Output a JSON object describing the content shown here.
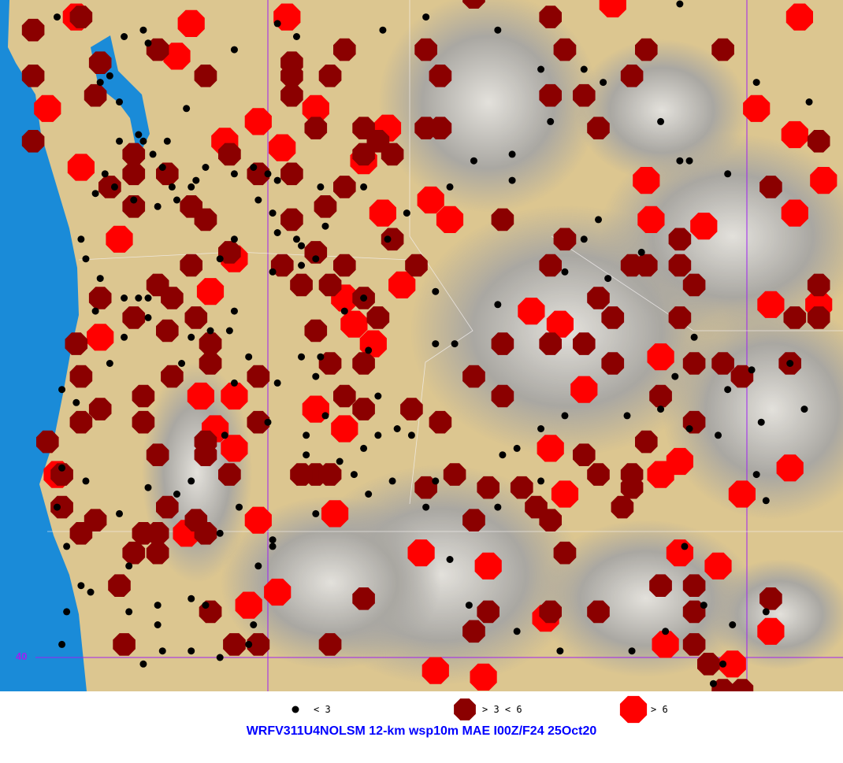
{
  "title": "WRFV311U4NOLSM 12-km wsp10m MAE I00Z/F24 25Oct20",
  "grid": {
    "lat_line": 40,
    "lat_label": "40",
    "lon_lines": [
      -120,
      -110
    ],
    "color": "#a020f0"
  },
  "colors": {
    "ocean": "#1a8bd8",
    "land": "#dcc690",
    "terrain": "#a8a8a8",
    "low": "#000000",
    "mid": "#8b0000",
    "high": "#ff0000",
    "title": "#0000ff"
  },
  "legend": [
    {
      "label": "< 3",
      "color": "#000000",
      "symbol": "dot"
    },
    {
      "label": "> 3 < 6",
      "color": "#8b0000",
      "symbol": "octagon"
    },
    {
      "label": "> 6",
      "color": "#ff0000",
      "symbol": "octagon"
    }
  ],
  "stations": {
    "high": [
      [
        -119.6,
        49.8
      ],
      [
        -112.8,
        50.0
      ],
      [
        -108.9,
        49.8
      ],
      [
        -109.8,
        48.4
      ],
      [
        -109.0,
        48.0
      ],
      [
        -108.4,
        47.3
      ],
      [
        -109.0,
        46.8
      ],
      [
        -110.9,
        46.6
      ],
      [
        -112.0,
        46.7
      ],
      [
        -112.1,
        47.3
      ],
      [
        -116.6,
        47.0
      ],
      [
        -117.6,
        46.8
      ],
      [
        -116.2,
        46.7
      ],
      [
        -117.2,
        45.7
      ],
      [
        -118.4,
        45.5
      ],
      [
        -118.2,
        45.1
      ],
      [
        -117.8,
        44.8
      ],
      [
        -114.5,
        45.3
      ],
      [
        -113.9,
        45.1
      ],
      [
        -113.4,
        44.1
      ],
      [
        -111.8,
        44.6
      ],
      [
        -114.1,
        43.2
      ],
      [
        -113.8,
        42.5
      ],
      [
        -111.8,
        42.8
      ],
      [
        -111.4,
        43.0
      ],
      [
        -110.1,
        42.5
      ],
      [
        -109.1,
        42.9
      ],
      [
        -116.8,
        41.6
      ],
      [
        -115.4,
        41.4
      ],
      [
        -111.4,
        41.6
      ],
      [
        -110.6,
        41.4
      ],
      [
        -114.2,
        40.6
      ],
      [
        -111.7,
        40.2
      ],
      [
        -110.3,
        39.9
      ],
      [
        -116.5,
        39.8
      ],
      [
        -115.5,
        39.7
      ],
      [
        -109.5,
        40.4
      ],
      [
        -123.5,
        44.9
      ],
      [
        -123.9,
        47.5
      ],
      [
        -124.6,
        48.4
      ],
      [
        -124.4,
        42.8
      ],
      [
        -121.4,
        44.0
      ],
      [
        -120.7,
        44.0
      ],
      [
        -121.1,
        43.5
      ],
      [
        -120.7,
        43.2
      ],
      [
        -120.2,
        42.1
      ],
      [
        -119.8,
        41.0
      ],
      [
        -120.4,
        40.8
      ],
      [
        -121.7,
        41.9
      ],
      [
        -119.0,
        43.8
      ],
      [
        -118.4,
        43.5
      ],
      [
        -118.6,
        42.2
      ],
      [
        -109.5,
        45.4
      ],
      [
        -108.5,
        45.4
      ],
      [
        -117.5,
        48.1
      ],
      [
        -118.0,
        47.6
      ],
      [
        -119.0,
        48.4
      ],
      [
        -120.9,
        47.9
      ],
      [
        -120.2,
        48.2
      ],
      [
        -119.7,
        47.8
      ],
      [
        -121.6,
        49.7
      ],
      [
        -124.0,
        49.8
      ],
      [
        -121.9,
        49.2
      ],
      [
        -123.1,
        46.4
      ],
      [
        -120.7,
        46.1
      ],
      [
        -121.2,
        45.6
      ]
    ],
    "mid": [
      [
        -124.9,
        49.6
      ],
      [
        -123.9,
        49.8
      ],
      [
        -121.3,
        48.9
      ],
      [
        -119.5,
        49.1
      ],
      [
        -118.4,
        49.3
      ],
      [
        -119.5,
        48.9
      ],
      [
        -118.7,
        48.9
      ],
      [
        -118.0,
        48.1
      ],
      [
        -116.7,
        48.1
      ],
      [
        -116.4,
        48.1
      ],
      [
        -116.4,
        48.9
      ],
      [
        -116.7,
        49.3
      ],
      [
        -115.7,
        50.1
      ],
      [
        -114.1,
        49.8
      ],
      [
        -113.8,
        49.3
      ],
      [
        -112.1,
        49.3
      ],
      [
        -110.5,
        49.3
      ],
      [
        -113.1,
        48.1
      ],
      [
        -112.4,
        48.9
      ],
      [
        -113.4,
        48.6
      ],
      [
        -114.1,
        48.6
      ],
      [
        -115.1,
        46.7
      ],
      [
        -113.8,
        46.4
      ],
      [
        -114.1,
        46.0
      ],
      [
        -112.4,
        46.0
      ],
      [
        -112.1,
        46.0
      ],
      [
        -111.1,
        45.7
      ],
      [
        -111.4,
        46.4
      ],
      [
        -113.1,
        45.5
      ],
      [
        -112.8,
        45.2
      ],
      [
        -111.4,
        45.2
      ],
      [
        -114.1,
        44.8
      ],
      [
        -112.8,
        44.5
      ],
      [
        -111.1,
        44.5
      ],
      [
        -110.5,
        44.5
      ],
      [
        -110.1,
        44.3
      ],
      [
        -109.1,
        44.5
      ],
      [
        -111.8,
        44.0
      ],
      [
        -111.1,
        43.6
      ],
      [
        -112.1,
        43.3
      ],
      [
        -112.4,
        42.8
      ],
      [
        -112.4,
        42.6
      ],
      [
        -113.4,
        43.1
      ],
      [
        -113.1,
        42.8
      ],
      [
        -116.1,
        42.8
      ],
      [
        -115.4,
        42.6
      ],
      [
        -116.7,
        42.6
      ],
      [
        -115.1,
        44.0
      ],
      [
        -115.7,
        44.3
      ],
      [
        -117.0,
        43.8
      ],
      [
        -116.4,
        43.6
      ],
      [
        -114.7,
        42.6
      ],
      [
        -114.4,
        42.3
      ],
      [
        -114.1,
        42.1
      ],
      [
        -115.7,
        42.1
      ],
      [
        -113.8,
        41.6
      ],
      [
        -111.1,
        41.1
      ],
      [
        -109.5,
        40.9
      ],
      [
        -111.1,
        40.7
      ],
      [
        -113.1,
        40.7
      ],
      [
        -114.1,
        40.7
      ],
      [
        -115.7,
        40.4
      ],
      [
        -115.4,
        40.7
      ],
      [
        -118.0,
        40.9
      ],
      [
        -118.7,
        40.2
      ],
      [
        -120.2,
        40.2
      ],
      [
        -120.7,
        40.2
      ],
      [
        -121.2,
        40.7
      ],
      [
        -123.0,
        40.2
      ],
      [
        -123.1,
        41.1
      ],
      [
        -122.6,
        41.9
      ],
      [
        -122.3,
        41.6
      ],
      [
        -123.6,
        42.1
      ],
      [
        -123.9,
        41.9
      ],
      [
        -124.3,
        42.8
      ],
      [
        -124.3,
        42.3
      ],
      [
        -124.6,
        43.3
      ],
      [
        -123.9,
        43.6
      ],
      [
        -123.5,
        43.8
      ],
      [
        -122.6,
        43.6
      ],
      [
        -122.3,
        43.1
      ],
      [
        -121.3,
        43.1
      ],
      [
        -120.2,
        43.6
      ],
      [
        -121.2,
        44.8
      ],
      [
        -121.2,
        44.5
      ],
      [
        -122.0,
        44.3
      ],
      [
        -122.6,
        44.0
      ],
      [
        -123.9,
        44.3
      ],
      [
        -124.0,
        44.8
      ],
      [
        -122.8,
        45.2
      ],
      [
        -122.1,
        45.0
      ],
      [
        -121.5,
        45.2
      ],
      [
        -122.0,
        45.5
      ],
      [
        -122.3,
        45.7
      ],
      [
        -123.5,
        45.5
      ],
      [
        -121.6,
        46.0
      ],
      [
        -120.8,
        46.2
      ],
      [
        -122.8,
        46.9
      ],
      [
        -121.6,
        46.9
      ],
      [
        -121.3,
        46.7
      ],
      [
        -122.1,
        47.4
      ],
      [
        -122.8,
        47.4
      ],
      [
        -120.8,
        47.7
      ],
      [
        -120.2,
        47.4
      ],
      [
        -119.5,
        47.4
      ],
      [
        -118.4,
        47.2
      ],
      [
        -118.8,
        46.9
      ],
      [
        -119.5,
        46.7
      ],
      [
        -119.0,
        46.2
      ],
      [
        -118.4,
        46.0
      ],
      [
        -119.7,
        46.0
      ],
      [
        -119.3,
        45.7
      ],
      [
        -118.7,
        45.7
      ],
      [
        -118.0,
        45.5
      ],
      [
        -117.7,
        45.2
      ],
      [
        -119.0,
        45.0
      ],
      [
        -118.7,
        44.5
      ],
      [
        -118.4,
        44.0
      ],
      [
        -118.0,
        44.5
      ],
      [
        -118.0,
        43.8
      ],
      [
        -120.2,
        44.3
      ],
      [
        -119.0,
        42.8
      ],
      [
        -119.3,
        42.8
      ],
      [
        -118.7,
        42.8
      ],
      [
        -120.8,
        42.8
      ],
      [
        -121.3,
        43.3
      ],
      [
        -121.5,
        42.1
      ],
      [
        -122.1,
        42.3
      ],
      [
        -108.5,
        47.9
      ],
      [
        -108.5,
        45.7
      ],
      [
        -109.0,
        45.2
      ],
      [
        -108.5,
        45.2
      ],
      [
        -109.5,
        47.2
      ],
      [
        -112.6,
        42.3
      ],
      [
        -111.4,
        46.0
      ],
      [
        -115.1,
        44.8
      ],
      [
        -113.4,
        44.8
      ],
      [
        -110.1,
        39.5
      ],
      [
        -110.5,
        39.5
      ],
      [
        -110.8,
        39.9
      ],
      [
        -111.1,
        40.2
      ],
      [
        -111.8,
        41.1
      ],
      [
        -121.3,
        41.9
      ],
      [
        -122.3,
        41.9
      ],
      [
        -122.8,
        41.6
      ],
      [
        -124.9,
        48.9
      ],
      [
        -124.9,
        47.9
      ],
      [
        -123.5,
        49.1
      ],
      [
        -123.6,
        48.6
      ],
      [
        -122.8,
        47.7
      ],
      [
        -123.3,
        47.2
      ],
      [
        -122.3,
        49.3
      ],
      [
        -119.5,
        48.6
      ],
      [
        -119.0,
        48.1
      ],
      [
        -118.0,
        47.7
      ],
      [
        -117.4,
        47.7
      ],
      [
        -117.4,
        46.4
      ],
      [
        -116.9,
        46.0
      ],
      [
        -117.7,
        47.9
      ]
    ],
    "low": [
      [
        -124.4,
        49.8
      ],
      [
        -123.0,
        49.5
      ],
      [
        -122.6,
        49.6
      ],
      [
        -120.7,
        49.3
      ],
      [
        -119.8,
        49.7
      ],
      [
        -119.4,
        49.5
      ],
      [
        -117.6,
        49.6
      ],
      [
        -116.7,
        49.8
      ],
      [
        -115.2,
        49.6
      ],
      [
        -114.3,
        49.0
      ],
      [
        -113.4,
        49.0
      ],
      [
        -113.0,
        48.8
      ],
      [
        -111.8,
        48.2
      ],
      [
        -111.4,
        50.0
      ],
      [
        -108.7,
        48.5
      ],
      [
        -109.8,
        48.8
      ],
      [
        -110.4,
        47.4
      ],
      [
        -111.4,
        47.6
      ],
      [
        -111.2,
        47.6
      ],
      [
        -114.1,
        48.2
      ],
      [
        -114.9,
        47.7
      ],
      [
        -115.7,
        47.6
      ],
      [
        -114.9,
        47.3
      ],
      [
        -116.2,
        47.2
      ],
      [
        -117.1,
        46.8
      ],
      [
        -117.5,
        46.4
      ],
      [
        -116.5,
        45.6
      ],
      [
        -116.5,
        44.8
      ],
      [
        -116.1,
        44.8
      ],
      [
        -115.2,
        45.4
      ],
      [
        -113.8,
        45.9
      ],
      [
        -112.9,
        45.8
      ],
      [
        -112.2,
        46.2
      ],
      [
        -113.1,
        46.7
      ],
      [
        -113.4,
        46.4
      ],
      [
        -111.1,
        44.9
      ],
      [
        -109.9,
        44.4
      ],
      [
        -109.1,
        44.5
      ],
      [
        -108.8,
        43.8
      ],
      [
        -109.7,
        43.6
      ],
      [
        -110.4,
        44.1
      ],
      [
        -111.5,
        44.3
      ],
      [
        -111.8,
        43.8
      ],
      [
        -111.2,
        43.5
      ],
      [
        -110.6,
        43.4
      ],
      [
        -112.5,
        43.7
      ],
      [
        -113.8,
        43.7
      ],
      [
        -114.3,
        43.5
      ],
      [
        -114.8,
        43.2
      ],
      [
        -115.1,
        43.1
      ],
      [
        -114.3,
        42.7
      ],
      [
        -115.2,
        42.3
      ],
      [
        -116.5,
        42.7
      ],
      [
        -116.7,
        42.3
      ],
      [
        -117.4,
        42.7
      ],
      [
        -117.9,
        42.5
      ],
      [
        -118.2,
        42.8
      ],
      [
        -119.0,
        42.2
      ],
      [
        -119.9,
        41.8
      ],
      [
        -120.6,
        42.3
      ],
      [
        -121.0,
        41.9
      ],
      [
        -121.6,
        42.7
      ],
      [
        -121.9,
        42.5
      ],
      [
        -122.5,
        42.6
      ],
      [
        -123.1,
        42.2
      ],
      [
        -123.8,
        42.7
      ],
      [
        -124.3,
        42.9
      ],
      [
        -124.4,
        42.3
      ],
      [
        -124.2,
        41.7
      ],
      [
        -123.9,
        41.1
      ],
      [
        -124.2,
        40.7
      ],
      [
        -123.7,
        41.0
      ],
      [
        -124.3,
        40.2
      ],
      [
        -122.6,
        39.9
      ],
      [
        -122.2,
        40.1
      ],
      [
        -121.6,
        40.1
      ],
      [
        -121.0,
        40.0
      ],
      [
        -120.4,
        40.2
      ],
      [
        -120.3,
        40.5
      ],
      [
        -121.6,
        40.9
      ],
      [
        -121.3,
        40.8
      ],
      [
        -122.3,
        40.8
      ],
      [
        -122.9,
        41.4
      ],
      [
        -122.9,
        40.7
      ],
      [
        -122.3,
        40.5
      ],
      [
        -120.2,
        41.4
      ],
      [
        -119.9,
        41.7
      ],
      [
        -116.2,
        41.5
      ],
      [
        -114.8,
        40.4
      ],
      [
        -115.8,
        40.8
      ],
      [
        -113.9,
        40.1
      ],
      [
        -112.4,
        40.1
      ],
      [
        -111.3,
        41.7
      ],
      [
        -110.9,
        40.8
      ],
      [
        -110.3,
        40.5
      ],
      [
        -109.6,
        40.7
      ],
      [
        -110.5,
        39.9
      ],
      [
        -110.7,
        39.6
      ],
      [
        -111.7,
        40.4
      ],
      [
        -109.6,
        42.4
      ],
      [
        -109.8,
        42.8
      ],
      [
        -122.7,
        45.5
      ],
      [
        -122.5,
        45.5
      ],
      [
        -123.0,
        45.5
      ],
      [
        -122.5,
        45.2
      ],
      [
        -123.0,
        44.9
      ],
      [
        -123.6,
        45.3
      ],
      [
        -123.3,
        44.5
      ],
      [
        -124.3,
        44.1
      ],
      [
        -124.0,
        43.9
      ],
      [
        -123.9,
        46.4
      ],
      [
        -123.8,
        46.1
      ],
      [
        -123.5,
        45.8
      ],
      [
        -122.8,
        47.0
      ],
      [
        -122.3,
        46.9
      ],
      [
        -122.7,
        48.0
      ],
      [
        -122.4,
        47.7
      ],
      [
        -122.2,
        47.5
      ],
      [
        -122.1,
        47.9
      ],
      [
        -122.6,
        47.9
      ],
      [
        -123.1,
        47.9
      ],
      [
        -123.1,
        48.5
      ],
      [
        -123.3,
        48.9
      ],
      [
        -123.5,
        48.8
      ],
      [
        -122.5,
        49.4
      ],
      [
        -121.7,
        48.4
      ],
      [
        -123.6,
        47.1
      ],
      [
        -123.4,
        47.4
      ],
      [
        -123.2,
        47.2
      ],
      [
        -121.0,
        46.1
      ],
      [
        -120.7,
        46.4
      ],
      [
        -120.2,
        47.0
      ],
      [
        -119.9,
        46.8
      ],
      [
        -119.8,
        46.5
      ],
      [
        -119.4,
        46.4
      ],
      [
        -119.3,
        46.3
      ],
      [
        -119.0,
        46.1
      ],
      [
        -119.3,
        46.0
      ],
      [
        -119.9,
        45.9
      ],
      [
        -119.8,
        47.3
      ],
      [
        -120.0,
        47.4
      ],
      [
        -118.9,
        47.2
      ],
      [
        -118.8,
        46.6
      ],
      [
        -118.0,
        47.2
      ],
      [
        -118.0,
        45.5
      ],
      [
        -118.4,
        45.3
      ],
      [
        -117.9,
        44.7
      ],
      [
        -118.9,
        44.6
      ],
      [
        -119.0,
        44.3
      ],
      [
        -119.8,
        44.2
      ],
      [
        -120.7,
        45.3
      ],
      [
        -120.8,
        45.0
      ],
      [
        -120.4,
        44.6
      ],
      [
        -121.2,
        45.0
      ],
      [
        -121.6,
        44.9
      ],
      [
        -121.8,
        44.5
      ],
      [
        -120.7,
        44.2
      ],
      [
        -120.9,
        43.4
      ],
      [
        -120.0,
        43.6
      ],
      [
        -119.2,
        43.4
      ],
      [
        -118.8,
        43.7
      ],
      [
        -117.7,
        44.0
      ],
      [
        -117.3,
        43.5
      ],
      [
        -117.0,
        43.4
      ],
      [
        -117.7,
        43.4
      ],
      [
        -118.5,
        43.0
      ],
      [
        -118.0,
        43.2
      ],
      [
        -119.2,
        43.1
      ],
      [
        -119.3,
        44.6
      ],
      [
        -121.6,
        47.2
      ],
      [
        -121.3,
        47.5
      ],
      [
        -120.7,
        47.4
      ],
      [
        -120.3,
        47.5
      ],
      [
        -122.0,
        47.2
      ],
      [
        -121.9,
        47.0
      ],
      [
        -121.5,
        47.3
      ]
    ]
  }
}
